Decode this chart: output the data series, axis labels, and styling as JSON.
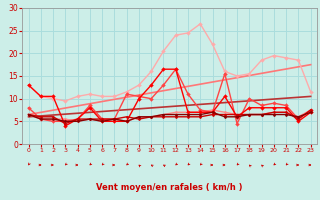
{
  "title": "",
  "xlabel": "Vent moyen/en rafales ( km/h )",
  "bg_color": "#cceee8",
  "grid_color": "#aadddd",
  "xlim": [
    -0.5,
    23.5
  ],
  "ylim": [
    0,
    30
  ],
  "yticks": [
    0,
    5,
    10,
    15,
    20,
    25,
    30
  ],
  "xticks": [
    0,
    1,
    2,
    3,
    4,
    5,
    6,
    7,
    8,
    9,
    10,
    11,
    12,
    13,
    14,
    15,
    16,
    17,
    18,
    19,
    20,
    21,
    22,
    23
  ],
  "lines": [
    {
      "x": [
        0,
        1,
        2,
        3,
        4,
        5,
        6,
        7,
        8,
        9,
        10,
        11,
        12,
        13,
        14,
        15,
        16,
        17,
        18,
        19,
        20,
        21,
        22,
        23
      ],
      "y": [
        13,
        10.5,
        10.5,
        4,
        5.5,
        8,
        5,
        5,
        5,
        10,
        13,
        16.5,
        16.5,
        7,
        7,
        7,
        10.5,
        6,
        8,
        8,
        8,
        8,
        5,
        7
      ],
      "color": "#ff0000",
      "lw": 1.0,
      "marker": "D",
      "ms": 2.0,
      "zorder": 5
    },
    {
      "x": [
        0,
        1,
        2,
        3,
        4,
        5,
        6,
        7,
        8,
        9,
        10,
        11,
        12,
        13,
        14,
        15,
        16,
        17,
        18,
        19,
        20,
        21,
        22,
        23
      ],
      "y": [
        6.5,
        6,
        6,
        4.5,
        5.5,
        5.5,
        5.5,
        5.5,
        6,
        5.5,
        6,
        6,
        6,
        6,
        6,
        6.5,
        6.5,
        6.5,
        6.5,
        6.5,
        7,
        7,
        5.5,
        7.5
      ],
      "color": "#cc0000",
      "lw": 1.0,
      "marker": "D",
      "ms": 1.5,
      "zorder": 6
    },
    {
      "x": [
        0,
        1,
        2,
        3,
        4,
        5,
        6,
        7,
        8,
        9,
        10,
        11,
        12,
        13,
        14,
        15,
        16,
        17,
        18,
        19,
        20,
        21,
        22,
        23
      ],
      "y": [
        6.5,
        5.5,
        5.5,
        5.0,
        5.0,
        5.5,
        5.0,
        5.5,
        5.0,
        6.0,
        6.0,
        6.5,
        6.5,
        6.5,
        6.5,
        7.0,
        6.0,
        6.0,
        6.5,
        6.5,
        6.5,
        6.5,
        6.0,
        7.0
      ],
      "color": "#880000",
      "lw": 1.0,
      "marker": "D",
      "ms": 1.5,
      "zorder": 6
    },
    {
      "x": [
        0,
        1,
        2,
        3,
        4,
        5,
        6,
        7,
        8,
        9,
        10,
        11,
        12,
        13,
        14,
        15,
        16,
        17,
        18,
        19,
        20,
        21,
        22,
        23
      ],
      "y": [
        8,
        5.5,
        5,
        5,
        5.5,
        8.5,
        5.5,
        5.5,
        11,
        10.5,
        10,
        13,
        16.5,
        11,
        7.5,
        7,
        15.5,
        4.5,
        10,
        8.5,
        9,
        8.5,
        5.5,
        7.5
      ],
      "color": "#ff4444",
      "lw": 1.0,
      "marker": "D",
      "ms": 2.0,
      "zorder": 4
    },
    {
      "x": [
        0,
        1,
        2,
        3,
        4,
        5,
        6,
        7,
        8,
        9,
        10,
        11,
        12,
        13,
        14,
        15,
        16,
        17,
        18,
        19,
        20,
        21,
        22,
        23
      ],
      "y": [
        13,
        10.5,
        10,
        9.5,
        10.5,
        11,
        10.5,
        10.5,
        11.5,
        13,
        16,
        20.5,
        24,
        24.5,
        26.5,
        22,
        16,
        15,
        15.5,
        18.5,
        19.5,
        19,
        18.5,
        11.5
      ],
      "color": "#ffaaaa",
      "lw": 1.0,
      "marker": "D",
      "ms": 2.0,
      "zorder": 3
    },
    {
      "x": [
        0,
        1,
        2,
        3,
        4,
        5,
        6,
        7,
        8,
        9,
        10,
        11,
        12,
        13,
        14,
        15,
        16,
        17,
        18,
        19,
        20,
        21,
        22,
        23
      ],
      "y": [
        6.5,
        5.5,
        5.5,
        5.5,
        5.0,
        5.5,
        5.0,
        5.5,
        5.0,
        6.0,
        6.0,
        6.5,
        7.0,
        7.0,
        7.0,
        7.5,
        7.0,
        6.5,
        6.5,
        6.5,
        7.0,
        7.0,
        6.0,
        7.5
      ],
      "color": "#ff8888",
      "lw": 1.0,
      "marker": "D",
      "ms": 1.5,
      "zorder": 3
    },
    {
      "x": [
        0,
        23
      ],
      "y": [
        6.5,
        17.5
      ],
      "color": "#ff7777",
      "lw": 1.2,
      "marker": null,
      "ms": 0,
      "zorder": 2
    },
    {
      "x": [
        0,
        23
      ],
      "y": [
        6.0,
        10.5
      ],
      "color": "#bb3333",
      "lw": 1.2,
      "marker": null,
      "ms": 0,
      "zorder": 2
    }
  ],
  "wind_arrows": {
    "x": [
      0,
      1,
      2,
      3,
      4,
      5,
      6,
      7,
      8,
      9,
      10,
      11,
      12,
      13,
      14,
      15,
      16,
      17,
      18,
      19,
      20,
      21,
      22,
      23
    ],
    "angles_deg": [
      210,
      90,
      90,
      225,
      90,
      225,
      225,
      90,
      225,
      315,
      300,
      300,
      225,
      225,
      225,
      90,
      90,
      225,
      315,
      315,
      225,
      225,
      90,
      90
    ]
  }
}
